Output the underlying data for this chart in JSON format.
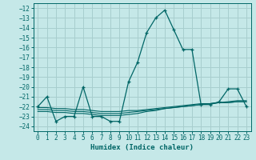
{
  "xlabel": "Humidex (Indice chaleur)",
  "xlim": [
    -0.5,
    23.5
  ],
  "ylim": [
    -24.5,
    -11.5
  ],
  "yticks": [
    -12,
    -13,
    -14,
    -15,
    -16,
    -17,
    -18,
    -19,
    -20,
    -21,
    -22,
    -23,
    -24
  ],
  "xticks": [
    0,
    1,
    2,
    3,
    4,
    5,
    6,
    7,
    8,
    9,
    10,
    11,
    12,
    13,
    14,
    15,
    16,
    17,
    18,
    19,
    20,
    21,
    22,
    23
  ],
  "bg_color": "#c5e8e8",
  "grid_color": "#a8cece",
  "line_color": "#006666",
  "line1_x": [
    0,
    1,
    2,
    3,
    4,
    5,
    6,
    7,
    8,
    9,
    10,
    11,
    12,
    13,
    14,
    15,
    16,
    17,
    18,
    19,
    20,
    21,
    22,
    23
  ],
  "line1_y": [
    -22.0,
    -21.0,
    -23.5,
    -23.0,
    -23.0,
    -20.0,
    -23.0,
    -23.0,
    -23.5,
    -23.5,
    -19.5,
    -17.5,
    -14.5,
    -13.0,
    -12.2,
    -14.2,
    -16.2,
    -16.2,
    -21.8,
    -21.8,
    -21.5,
    -20.2,
    -20.2,
    -22.0
  ],
  "line2_x": [
    0,
    1,
    2,
    3,
    4,
    5,
    6,
    7,
    8,
    9,
    10,
    11,
    12,
    13,
    14,
    15,
    16,
    17,
    18,
    19,
    20,
    21,
    22,
    23
  ],
  "line2_y": [
    -22.1,
    -22.1,
    -22.2,
    -22.2,
    -22.3,
    -22.3,
    -22.4,
    -22.5,
    -22.5,
    -22.5,
    -22.4,
    -22.4,
    -22.3,
    -22.2,
    -22.1,
    -22.0,
    -21.9,
    -21.8,
    -21.7,
    -21.7,
    -21.6,
    -21.6,
    -21.5,
    -21.5
  ],
  "line3_x": [
    0,
    1,
    2,
    3,
    4,
    5,
    6,
    7,
    8,
    9,
    10,
    11,
    12,
    13,
    14,
    15,
    16,
    17,
    18,
    19,
    20,
    21,
    22,
    23
  ],
  "line3_y": [
    -22.3,
    -22.3,
    -22.4,
    -22.4,
    -22.5,
    -22.5,
    -22.6,
    -22.7,
    -22.7,
    -22.7,
    -22.6,
    -22.5,
    -22.4,
    -22.3,
    -22.2,
    -22.1,
    -22.0,
    -21.9,
    -21.8,
    -21.7,
    -21.6,
    -21.6,
    -21.5,
    -21.5
  ],
  "line4_x": [
    0,
    1,
    2,
    3,
    4,
    5,
    6,
    7,
    8,
    9,
    10,
    11,
    12,
    13,
    14,
    15,
    16,
    17,
    18,
    19,
    20,
    21,
    22,
    23
  ],
  "line4_y": [
    -22.5,
    -22.5,
    -22.6,
    -22.6,
    -22.7,
    -22.7,
    -22.8,
    -22.9,
    -22.9,
    -22.9,
    -22.8,
    -22.7,
    -22.5,
    -22.4,
    -22.2,
    -22.1,
    -22.0,
    -21.9,
    -21.8,
    -21.7,
    -21.6,
    -21.5,
    -21.4,
    -21.4
  ]
}
